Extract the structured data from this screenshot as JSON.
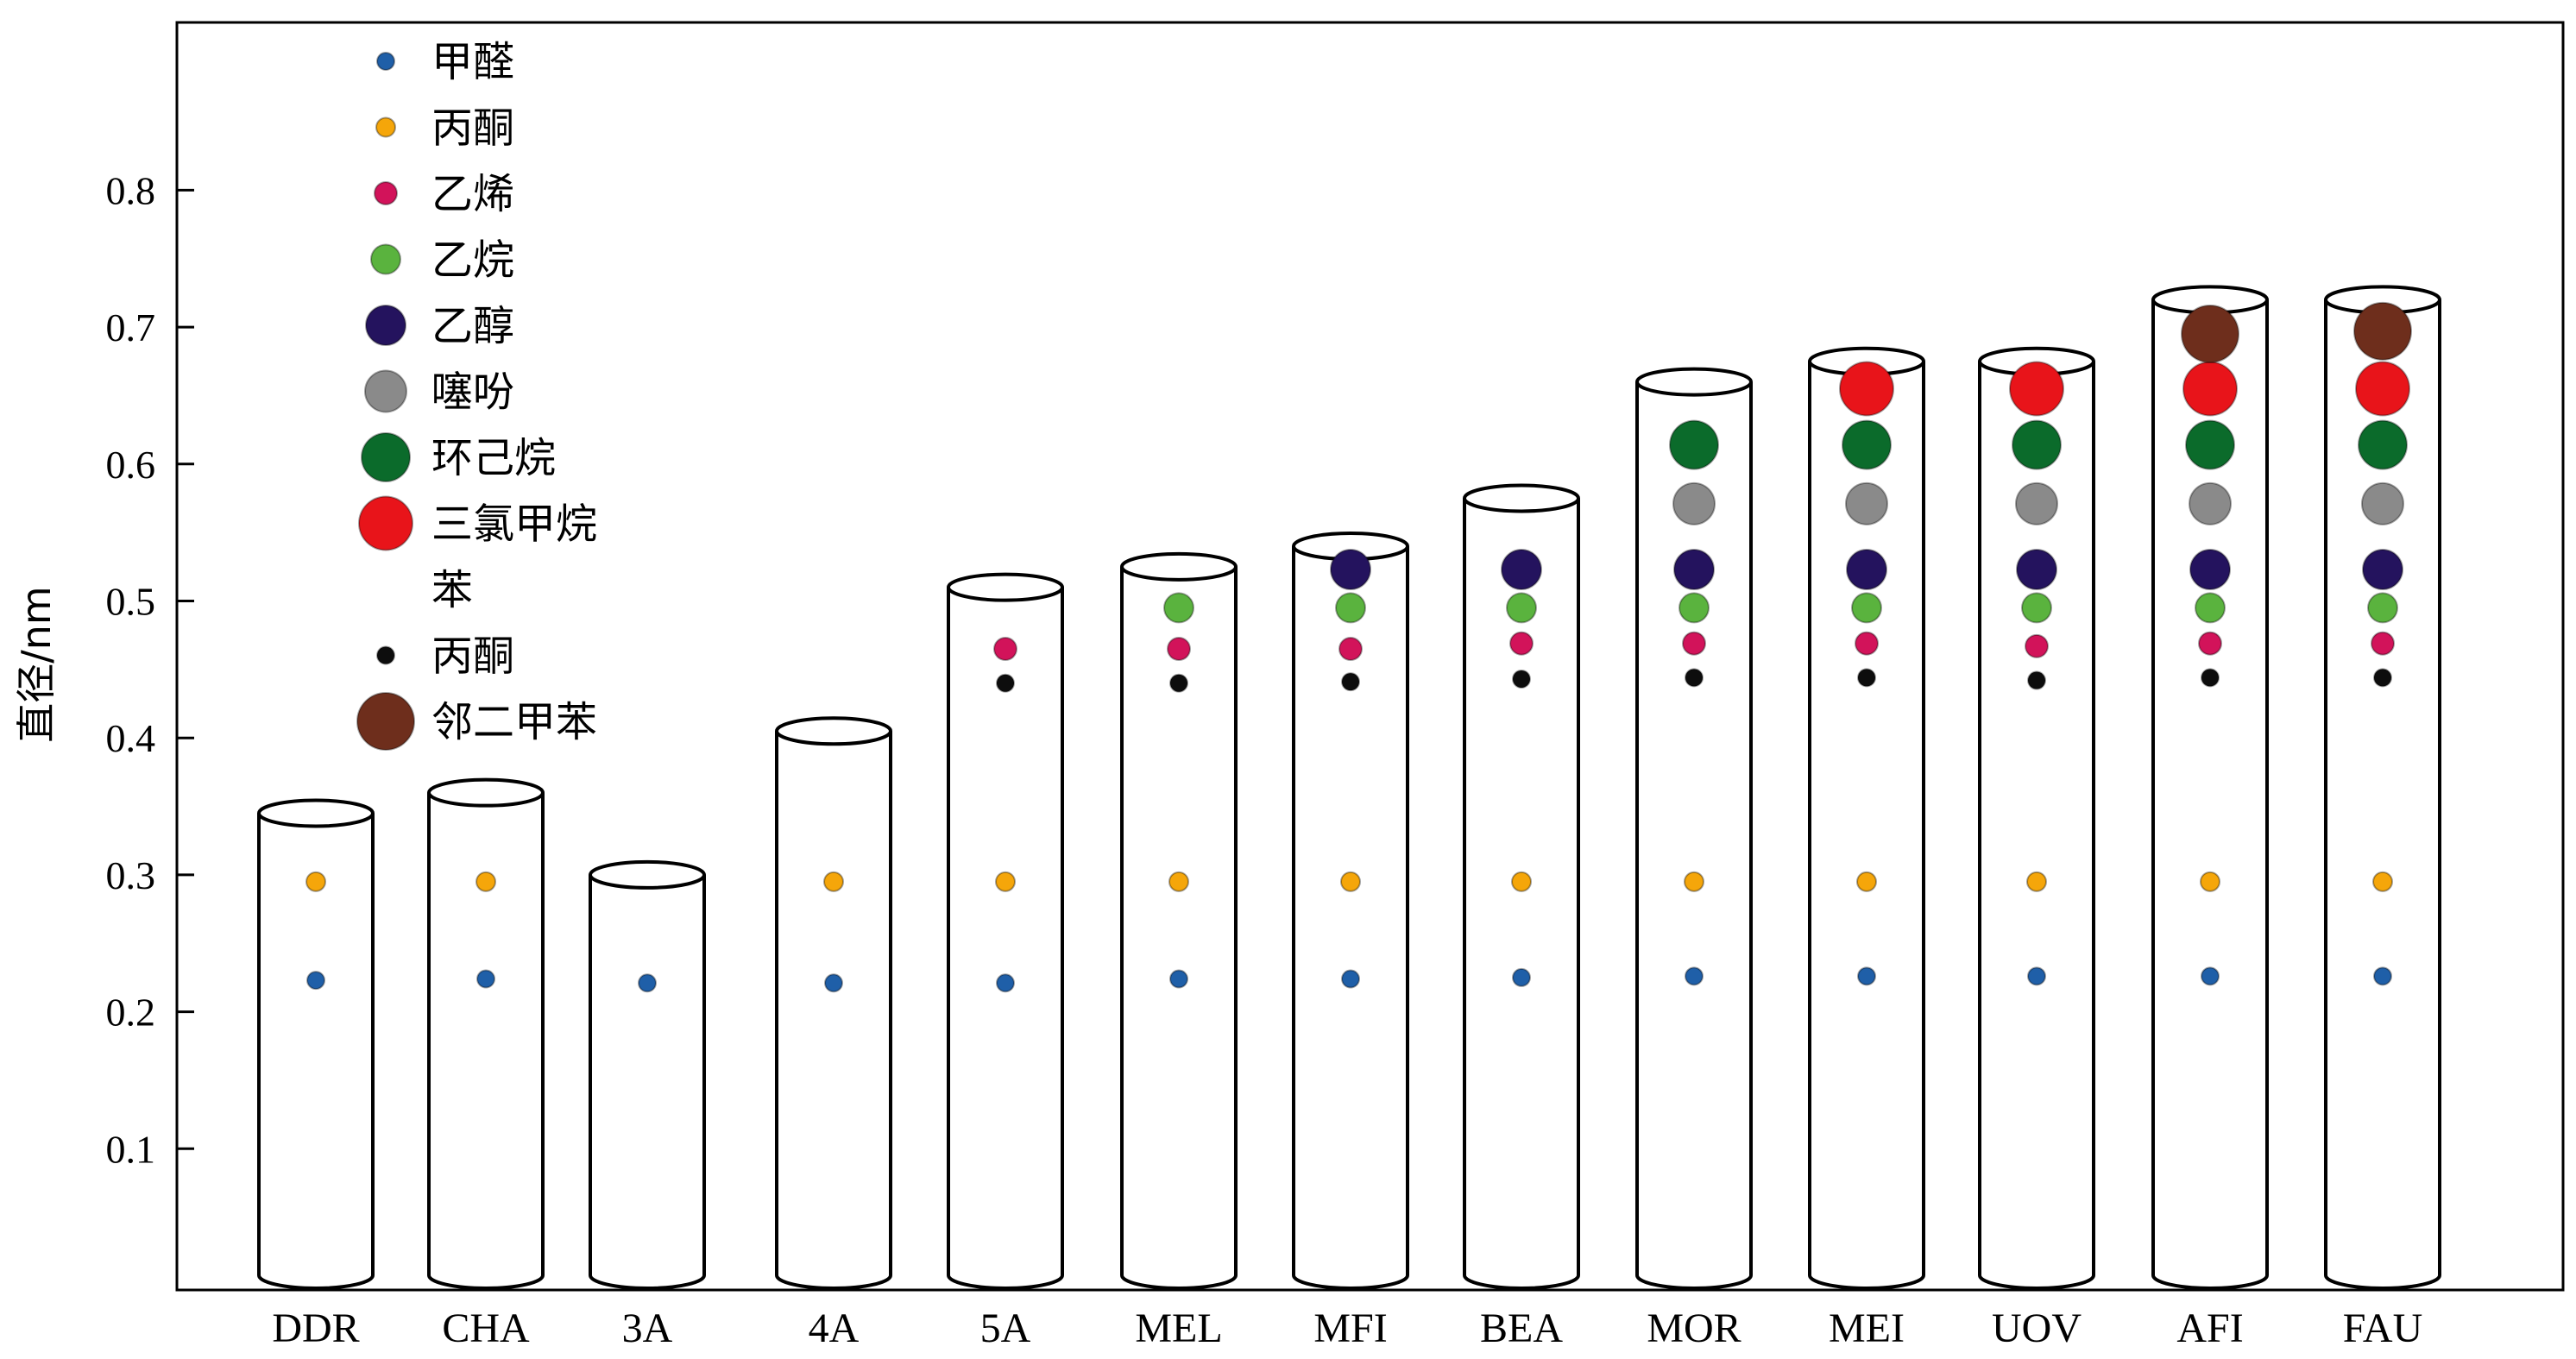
{
  "chart_data": {
    "type": "scatter",
    "title": "",
    "xlabel": "",
    "ylabel": "直径/nm",
    "ylim": [
      0,
      0.93
    ],
    "yticks": [
      0.1,
      0.2,
      0.3,
      0.4,
      0.5,
      0.6,
      0.7,
      0.8
    ],
    "grid": false,
    "legend_position": "top-left",
    "categories": [
      "DDR",
      "CHA",
      "3A",
      "4A",
      "5A",
      "MEL",
      "MFI",
      "BEA",
      "MOR",
      "MEI",
      "UOV",
      "AFI",
      "FAU"
    ],
    "pore_diameters": [
      0.345,
      0.36,
      0.3,
      0.405,
      0.51,
      0.525,
      0.54,
      0.575,
      0.66,
      0.675,
      0.675,
      0.72,
      0.72
    ],
    "series": [
      {
        "name": "甲醛",
        "color": "#1f5fa8",
        "values": [
          0.223,
          0.224,
          0.221,
          0.221,
          0.221,
          0.224,
          0.224,
          0.225,
          0.226,
          0.226,
          0.226,
          0.226,
          0.226
        ]
      },
      {
        "name": "丙酮",
        "color": "#f5a60a",
        "values": [
          0.295,
          0.295,
          null,
          0.295,
          0.295,
          0.295,
          0.295,
          0.295,
          0.295,
          0.295,
          0.295,
          0.295,
          0.295
        ]
      },
      {
        "name": "乙烯",
        "color": "#d2135a",
        "values": [
          null,
          null,
          null,
          null,
          0.465,
          0.465,
          0.465,
          0.469,
          0.469,
          0.469,
          0.467,
          0.469,
          0.469
        ]
      },
      {
        "name": "乙烷",
        "color": "#5ab33e",
        "values": [
          null,
          null,
          null,
          null,
          null,
          0.495,
          0.495,
          0.495,
          0.495,
          0.495,
          0.495,
          0.495,
          0.495
        ]
      },
      {
        "name": "乙醇",
        "color": "#24135e",
        "values": [
          null,
          null,
          null,
          null,
          null,
          null,
          0.523,
          0.523,
          0.523,
          0.523,
          0.523,
          0.523,
          0.523
        ]
      },
      {
        "name": "噻吩",
        "color": "#8a8a8a",
        "values": [
          null,
          null,
          null,
          null,
          null,
          null,
          null,
          null,
          0.571,
          0.571,
          0.571,
          0.571,
          0.571
        ]
      },
      {
        "name": "环己烷",
        "color": "#0b6b2b",
        "values": [
          null,
          null,
          null,
          null,
          null,
          null,
          null,
          null,
          0.614,
          0.614,
          0.614,
          0.614,
          0.614
        ]
      },
      {
        "name": "三氯甲烷",
        "color": "#e8141a",
        "values": [
          null,
          null,
          null,
          null,
          null,
          null,
          null,
          null,
          null,
          0.655,
          0.655,
          0.655,
          0.655
        ]
      },
      {
        "name": "苯",
        "color": "",
        "values": []
      },
      {
        "name": "丙酮",
        "color": "#0d0d0d",
        "values": [
          null,
          null,
          null,
          null,
          0.44,
          0.44,
          0.441,
          0.443,
          0.444,
          0.444,
          0.442,
          0.444,
          0.444
        ]
      },
      {
        "name": "邻二甲苯",
        "color": "#6e2e1c",
        "values": [
          null,
          null,
          null,
          null,
          null,
          null,
          null,
          null,
          null,
          null,
          null,
          0.695,
          0.697
        ]
      }
    ]
  }
}
